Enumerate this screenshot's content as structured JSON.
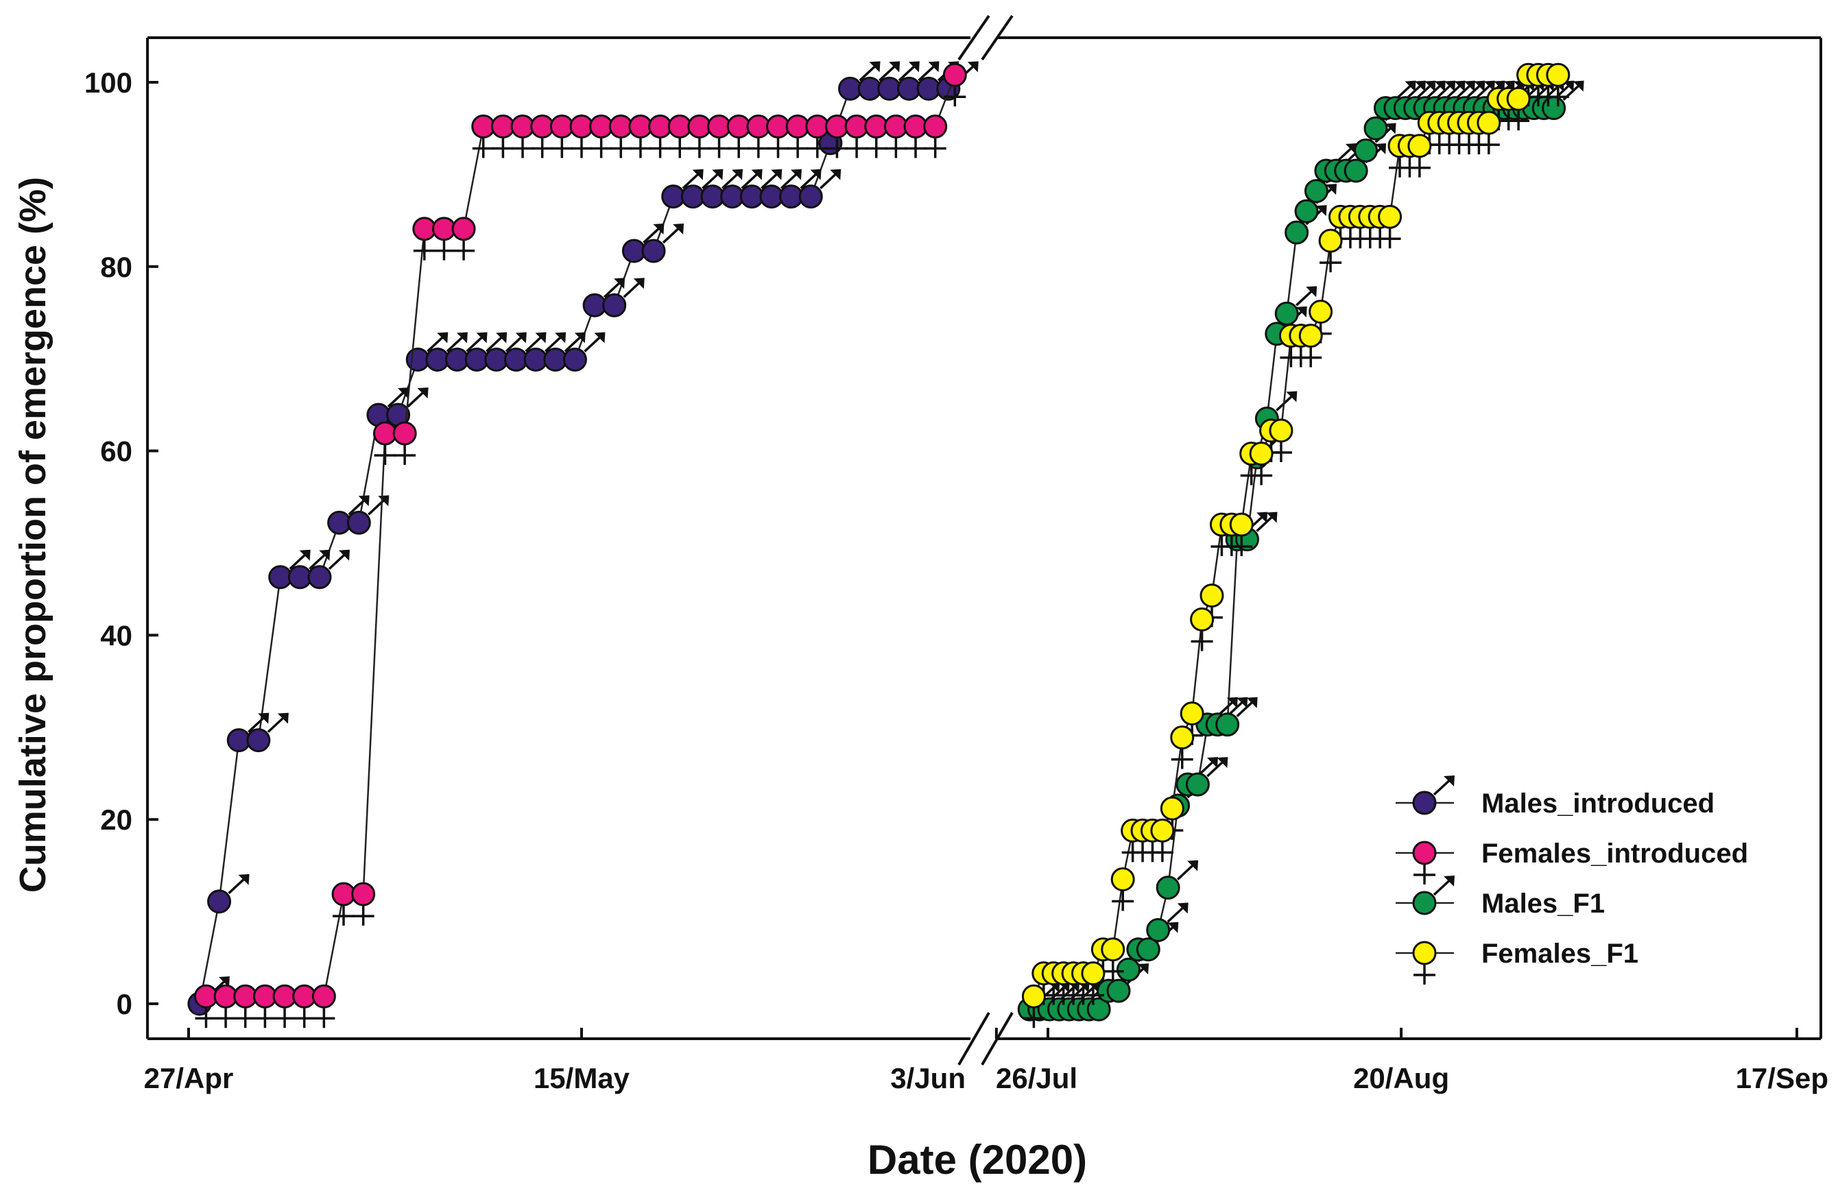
{
  "chart_data": {
    "type": "line",
    "xlabel": "Date (2020)",
    "ylabel": "Cumulative proportion of emergence (%)",
    "ylim": [
      0,
      100
    ],
    "y_ticks": [
      0,
      20,
      40,
      60,
      80,
      100
    ],
    "x_tick_labels": [
      {
        "label": "27/Apr",
        "segment": 0,
        "day": 0
      },
      {
        "label": "15/May",
        "segment": 0,
        "day": 18
      },
      {
        "label": "3/Jun",
        "segment": 0,
        "day": 37
      },
      {
        "label": "26/Jul",
        "segment": 1,
        "day": 0
      },
      {
        "label": "20/Aug",
        "segment": 1,
        "day": 25
      },
      {
        "label": "17/Sep",
        "segment": 1,
        "day": 53
      }
    ],
    "legend_position": "bottom-right",
    "series": [
      {
        "name": "Males_introduced",
        "segment": 0,
        "color": "#3b2378",
        "symbol": "male",
        "points": [
          [
            0.5,
            0
          ],
          [
            1.4,
            11.1
          ],
          [
            2.3,
            28.6
          ],
          [
            3.2,
            28.6
          ],
          [
            4.2,
            46.3
          ],
          [
            5.1,
            46.3
          ],
          [
            6.0,
            46.3
          ],
          [
            6.9,
            52.2
          ],
          [
            7.8,
            52.2
          ],
          [
            8.7,
            63.9
          ],
          [
            9.6,
            63.9
          ],
          [
            10.5,
            69.9
          ],
          [
            11.4,
            69.9
          ],
          [
            12.3,
            69.9
          ],
          [
            13.2,
            69.9
          ],
          [
            14.1,
            69.9
          ],
          [
            15.0,
            69.9
          ],
          [
            15.9,
            69.9
          ],
          [
            16.8,
            69.9
          ],
          [
            17.7,
            69.9
          ],
          [
            18.6,
            75.8
          ],
          [
            19.5,
            75.8
          ],
          [
            20.4,
            81.7
          ],
          [
            21.3,
            81.7
          ],
          [
            22.2,
            87.6
          ],
          [
            23.1,
            87.6
          ],
          [
            24.0,
            87.6
          ],
          [
            24.9,
            87.6
          ],
          [
            25.8,
            87.6
          ],
          [
            26.7,
            87.6
          ],
          [
            27.6,
            87.6
          ],
          [
            28.5,
            87.6
          ],
          [
            29.4,
            93.4
          ],
          [
            30.3,
            99.3
          ],
          [
            31.2,
            99.3
          ],
          [
            32.1,
            99.3
          ],
          [
            33.0,
            99.3
          ],
          [
            33.9,
            99.3
          ],
          [
            34.8,
            99.3
          ]
        ]
      },
      {
        "name": "Females_introduced",
        "segment": 0,
        "color": "#e8157c",
        "symbol": "female",
        "points": [
          [
            0.8,
            0.8
          ],
          [
            1.7,
            0.8
          ],
          [
            2.6,
            0.8
          ],
          [
            3.5,
            0.8
          ],
          [
            4.4,
            0.8
          ],
          [
            5.3,
            0.8
          ],
          [
            6.2,
            0.8
          ],
          [
            7.1,
            11.9
          ],
          [
            8.0,
            11.9
          ],
          [
            9.0,
            61.9
          ],
          [
            9.9,
            61.9
          ],
          [
            10.8,
            84.1
          ],
          [
            11.7,
            84.1
          ],
          [
            12.6,
            84.1
          ],
          [
            13.5,
            95.2
          ],
          [
            14.4,
            95.2
          ],
          [
            15.3,
            95.2
          ],
          [
            16.2,
            95.2
          ],
          [
            17.1,
            95.2
          ],
          [
            18.0,
            95.2
          ],
          [
            18.9,
            95.2
          ],
          [
            19.8,
            95.2
          ],
          [
            20.7,
            95.2
          ],
          [
            21.6,
            95.2
          ],
          [
            22.5,
            95.2
          ],
          [
            23.4,
            95.2
          ],
          [
            24.3,
            95.2
          ],
          [
            25.2,
            95.2
          ],
          [
            26.1,
            95.2
          ],
          [
            27.0,
            95.2
          ],
          [
            27.9,
            95.2
          ],
          [
            28.8,
            95.2
          ],
          [
            29.7,
            95.2
          ],
          [
            30.6,
            95.2
          ],
          [
            31.5,
            95.2
          ],
          [
            32.4,
            95.2
          ],
          [
            33.3,
            95.2
          ],
          [
            34.2,
            95.2
          ],
          [
            35.1,
            100.8
          ]
        ]
      },
      {
        "name": "Males_F1",
        "segment": 1,
        "color": "#0d9448",
        "symbol": "male",
        "points": [
          [
            -1.3,
            -0.6
          ],
          [
            -0.6,
            -0.6
          ],
          [
            0.1,
            -0.6
          ],
          [
            0.8,
            -0.6
          ],
          [
            1.5,
            -0.6
          ],
          [
            2.2,
            -0.6
          ],
          [
            2.9,
            -0.6
          ],
          [
            3.6,
            -0.6
          ],
          [
            4.3,
            1.4
          ],
          [
            5.0,
            1.4
          ],
          [
            5.7,
            3.7
          ],
          [
            6.4,
            5.9
          ],
          [
            7.1,
            5.9
          ],
          [
            7.8,
            8.0
          ],
          [
            8.5,
            12.6
          ],
          [
            9.2,
            21.5
          ],
          [
            9.9,
            23.8
          ],
          [
            10.6,
            23.8
          ],
          [
            11.3,
            30.3
          ],
          [
            12.0,
            30.3
          ],
          [
            12.7,
            30.3
          ],
          [
            13.4,
            50.4
          ],
          [
            14.1,
            50.4
          ],
          [
            14.8,
            59.3
          ],
          [
            15.5,
            63.5
          ],
          [
            16.2,
            72.7
          ],
          [
            16.9,
            74.9
          ],
          [
            17.6,
            83.7
          ],
          [
            18.3,
            86.0
          ],
          [
            19.0,
            88.2
          ],
          [
            19.7,
            90.4
          ],
          [
            20.4,
            90.4
          ],
          [
            21.1,
            90.4
          ],
          [
            21.8,
            90.4
          ],
          [
            22.5,
            92.6
          ],
          [
            23.2,
            95.0
          ],
          [
            23.9,
            97.2
          ],
          [
            24.6,
            97.2
          ],
          [
            25.3,
            97.2
          ],
          [
            26.0,
            97.2
          ],
          [
            26.7,
            97.2
          ],
          [
            27.4,
            97.2
          ],
          [
            28.1,
            97.2
          ],
          [
            28.8,
            97.2
          ],
          [
            29.5,
            97.2
          ],
          [
            30.2,
            97.2
          ],
          [
            30.9,
            97.2
          ],
          [
            31.6,
            97.2
          ],
          [
            32.3,
            97.2
          ],
          [
            33.0,
            97.2
          ],
          [
            33.7,
            97.2
          ],
          [
            34.4,
            97.2
          ],
          [
            35.1,
            97.2
          ],
          [
            35.8,
            97.2
          ]
        ]
      },
      {
        "name": "Females_F1",
        "segment": 1,
        "color": "#fff200",
        "symbol": "female",
        "points": [
          [
            -1.0,
            0.8
          ],
          [
            -0.3,
            3.3
          ],
          [
            0.4,
            3.3
          ],
          [
            1.1,
            3.3
          ],
          [
            1.8,
            3.3
          ],
          [
            2.5,
            3.3
          ],
          [
            3.2,
            3.3
          ],
          [
            3.9,
            5.9
          ],
          [
            4.6,
            5.9
          ],
          [
            5.3,
            13.5
          ],
          [
            6.0,
            18.8
          ],
          [
            6.7,
            18.8
          ],
          [
            7.4,
            18.8
          ],
          [
            8.1,
            18.8
          ],
          [
            8.8,
            21.2
          ],
          [
            9.5,
            28.9
          ],
          [
            10.2,
            31.5
          ],
          [
            10.9,
            41.7
          ],
          [
            11.6,
            44.3
          ],
          [
            12.3,
            52.0
          ],
          [
            13.0,
            52.0
          ],
          [
            13.7,
            52.0
          ],
          [
            14.4,
            59.7
          ],
          [
            15.1,
            59.7
          ],
          [
            15.8,
            62.2
          ],
          [
            16.5,
            62.2
          ],
          [
            17.2,
            72.5
          ],
          [
            17.9,
            72.5
          ],
          [
            18.6,
            72.5
          ],
          [
            19.3,
            75.1
          ],
          [
            20.0,
            82.8
          ],
          [
            20.7,
            85.4
          ],
          [
            21.4,
            85.4
          ],
          [
            22.1,
            85.4
          ],
          [
            22.8,
            85.4
          ],
          [
            23.5,
            85.4
          ],
          [
            24.2,
            85.4
          ],
          [
            24.9,
            93.1
          ],
          [
            25.6,
            93.1
          ],
          [
            26.3,
            93.1
          ],
          [
            27.0,
            95.6
          ],
          [
            27.7,
            95.6
          ],
          [
            28.4,
            95.6
          ],
          [
            29.1,
            95.6
          ],
          [
            29.8,
            95.6
          ],
          [
            30.5,
            95.6
          ],
          [
            31.2,
            95.6
          ],
          [
            31.9,
            98.2
          ],
          [
            32.6,
            98.2
          ],
          [
            33.3,
            98.2
          ],
          [
            34.0,
            100.8
          ],
          [
            34.7,
            100.8
          ],
          [
            35.4,
            100.8
          ],
          [
            36.1,
            100.8
          ]
        ]
      }
    ]
  },
  "legend": {
    "items": [
      {
        "label": "Males_introduced",
        "color": "#3b2378",
        "symbol": "male"
      },
      {
        "label": "Females_introduced",
        "color": "#e8157c",
        "symbol": "female"
      },
      {
        "label": "Males_F1",
        "color": "#0d9448",
        "symbol": "male"
      },
      {
        "label": "Females_F1",
        "color": "#fff200",
        "symbol": "female"
      }
    ]
  }
}
